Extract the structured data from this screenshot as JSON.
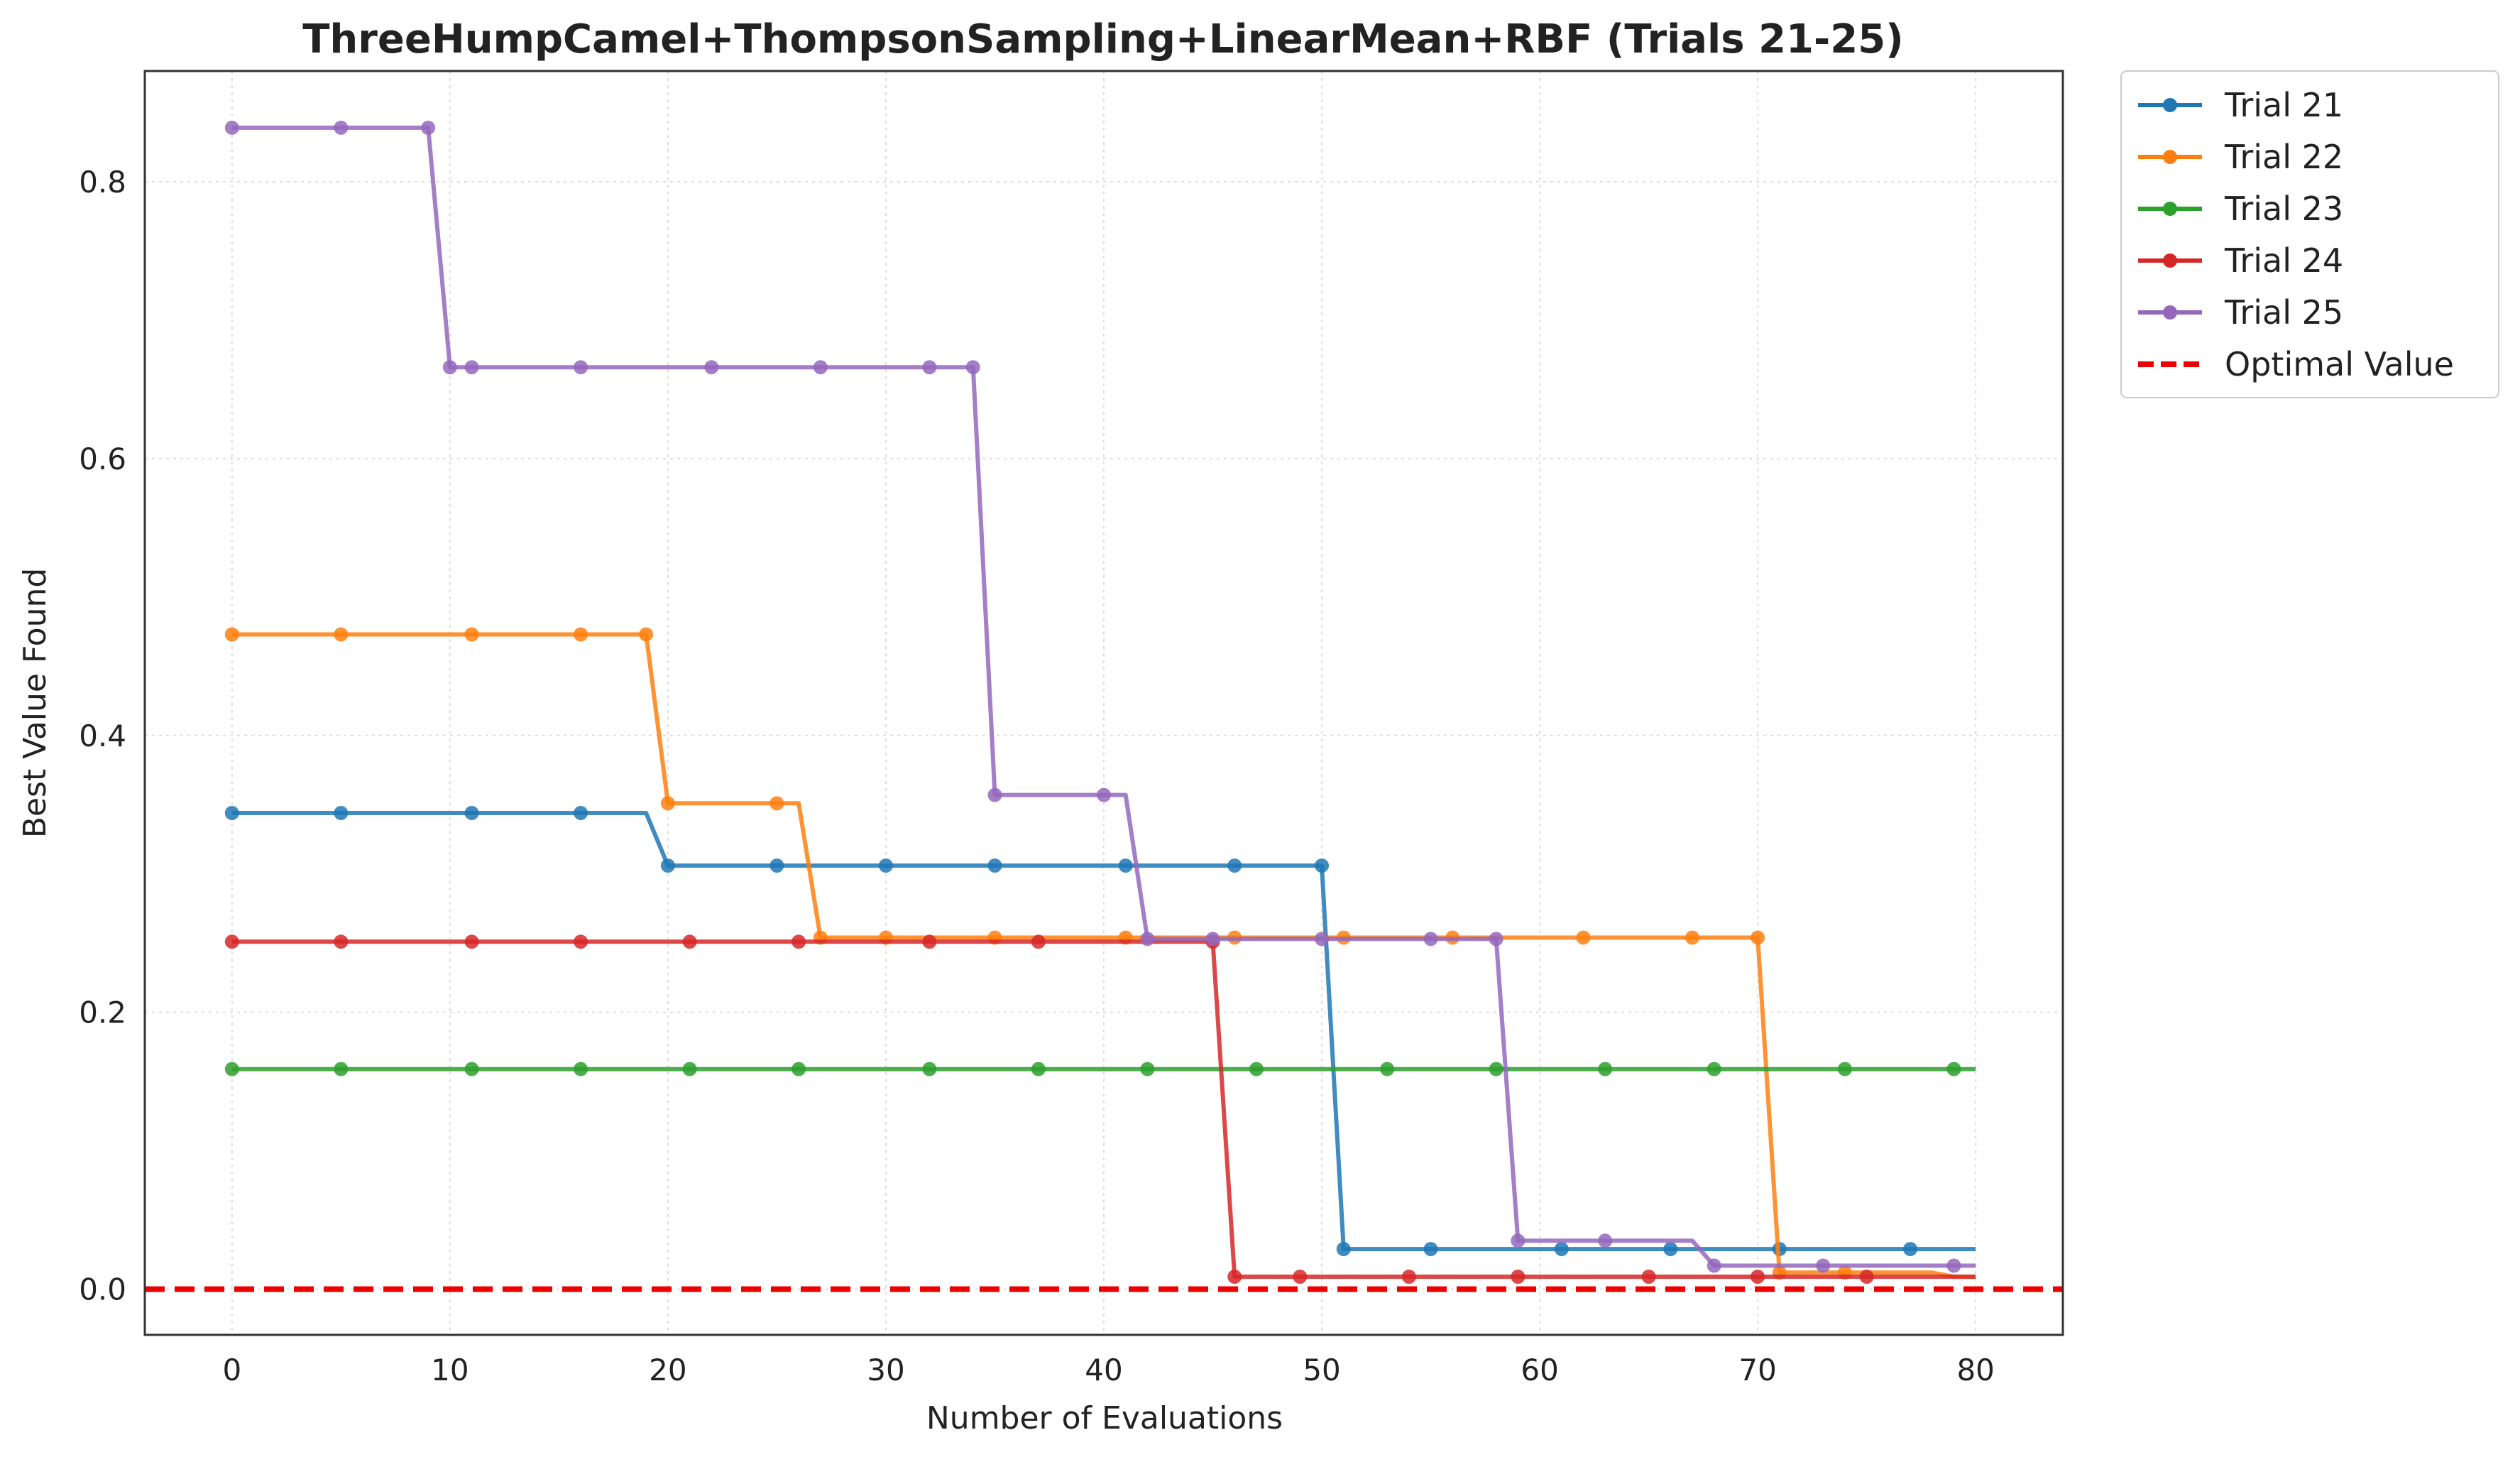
{
  "chart_data": {
    "type": "line",
    "title": "ThreeHumpCamel+ThompsonSampling+LinearMean+RBF (Trials 21-25)",
    "xlabel": "Number of Evaluations",
    "ylabel": "Best Value Found",
    "xlim": [
      -4,
      84
    ],
    "ylim": [
      -0.033,
      0.88
    ],
    "xticks": [
      0,
      10,
      20,
      30,
      40,
      50,
      60,
      70,
      80
    ],
    "yticks": [
      0.0,
      0.2,
      0.4,
      0.6,
      0.8
    ],
    "ytick_labels": [
      "0.0",
      "0.2",
      "0.4",
      "0.6",
      "0.8"
    ],
    "grid": true,
    "legend_position": "outside-top-right",
    "series": [
      {
        "name": "Trial 21",
        "color": "#1f77b4",
        "steps": [
          [
            0,
            0.344
          ],
          [
            20,
            0.306
          ],
          [
            51,
            0.029
          ]
        ],
        "markers_x": [
          0,
          5,
          11,
          16,
          20,
          25,
          30,
          35,
          41,
          46,
          50,
          51,
          55,
          61,
          66,
          71,
          77
        ]
      },
      {
        "name": "Trial 22",
        "color": "#ff7f0e",
        "steps": [
          [
            0,
            0.473
          ],
          [
            20,
            0.351
          ],
          [
            27,
            0.254
          ],
          [
            71,
            0.012
          ],
          [
            79,
            0.009
          ]
        ],
        "markers_x": [
          0,
          5,
          11,
          16,
          19,
          20,
          25,
          27,
          30,
          35,
          41,
          46,
          51,
          56,
          62,
          67,
          70,
          71,
          74
        ]
      },
      {
        "name": "Trial 23",
        "color": "#2ca02c",
        "steps": [
          [
            0,
            0.159
          ]
        ],
        "markers_x": [
          0,
          5,
          11,
          16,
          21,
          26,
          32,
          37,
          42,
          47,
          53,
          58,
          63,
          68,
          74,
          79
        ]
      },
      {
        "name": "Trial 24",
        "color": "#d62728",
        "steps": [
          [
            0,
            0.251
          ],
          [
            46,
            0.009
          ]
        ],
        "markers_x": [
          0,
          5,
          11,
          16,
          21,
          26,
          32,
          37,
          45,
          46,
          49,
          54,
          59,
          65,
          70,
          75
        ]
      },
      {
        "name": "Trial 25",
        "color": "#9467bd",
        "steps": [
          [
            0,
            0.839
          ],
          [
            10,
            0.666
          ],
          [
            35,
            0.357
          ],
          [
            42,
            0.253
          ],
          [
            59,
            0.035
          ],
          [
            68,
            0.017
          ]
        ],
        "markers_x": [
          0,
          5,
          9,
          10,
          11,
          16,
          22,
          27,
          32,
          34,
          35,
          40,
          42,
          45,
          50,
          55,
          58,
          59,
          63,
          68,
          73,
          79
        ]
      }
    ],
    "x_end": 80,
    "reference_line": {
      "name": "Optimal Value",
      "value": 0.0,
      "color": "#ee0000",
      "style": "dashed"
    }
  }
}
